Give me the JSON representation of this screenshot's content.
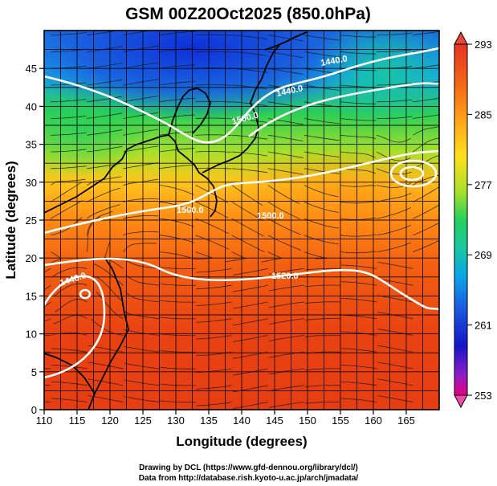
{
  "title": "GSM 00Z20Oct2025 (850.0hPa)",
  "xlabel": "Longitude (degrees)",
  "ylabel": "Latitude  (degrees)",
  "x_ticks": [
    "110",
    "115",
    "120",
    "125",
    "130",
    "135",
    "140",
    "145",
    "150",
    "155",
    "160",
    "165"
  ],
  "y_ticks": [
    "0",
    "5",
    "10",
    "15",
    "20",
    "25",
    "30",
    "35",
    "40",
    "45"
  ],
  "colorbar_ticks": [
    "293",
    "285",
    "277",
    "269",
    "261",
    "253"
  ],
  "contour_labels": [
    "1440.0",
    "1440.0",
    "1500.0",
    "1500.0",
    "1500.0",
    "1520.0",
    "1440.0"
  ],
  "credit_line1": "Drawing by DCL (https://www.gfd-dennou.org/library/dcl/)",
  "credit_line2": "Data from http://database.rish.kyoto-u.ac.jp/arch/jmadata/",
  "colors": {
    "background": "#ffffff",
    "contour": "#ffffff",
    "coast": "#000000"
  },
  "chart_data": {
    "type": "heatmap",
    "title": "GSM 00Z20Oct2025 (850.0hPa)",
    "xlabel": "Longitude (degrees)",
    "ylabel": "Latitude  (degrees)",
    "xlim": [
      110,
      170
    ],
    "ylim": [
      0,
      50
    ],
    "colorbar_range": [
      253,
      293
    ],
    "colorbar_ticks": [
      293,
      285,
      277,
      269,
      261,
      253
    ],
    "colormap": [
      "#e6007e",
      "#1515c8",
      "#0aa6e8",
      "#25d15c",
      "#ffe01e",
      "#ff8a14",
      "#e23a12"
    ],
    "contour_levels": [
      1440.0,
      1500.0,
      1520.0
    ],
    "features": [
      "temperature shading",
      "geopotential height contours",
      "wind streamlines",
      "coastlines",
      "tropical cyclone near 116E 17N",
      "cyclonic circulation near 164E 33N"
    ]
  }
}
